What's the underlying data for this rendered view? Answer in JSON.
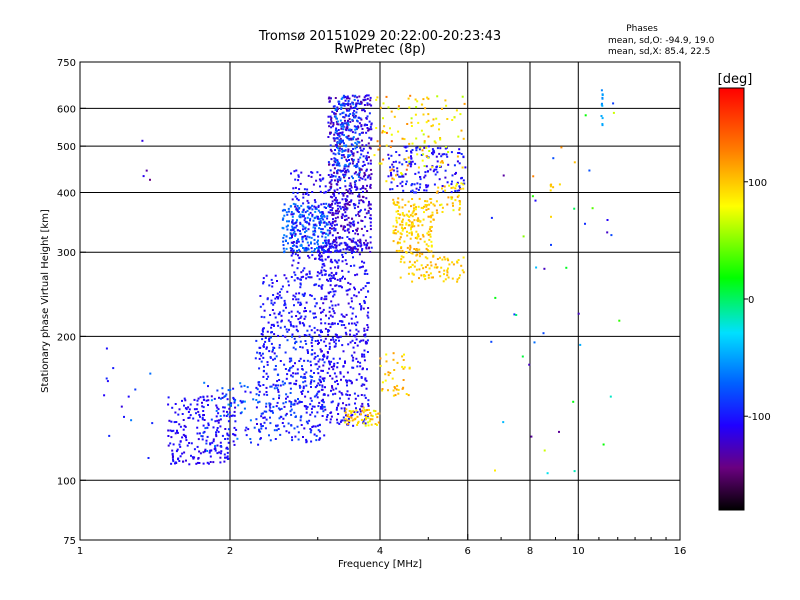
{
  "chart_data": {
    "type": "scatter",
    "title": "Tromsø 20151029 20:22:00-20:23:43",
    "subtitle": "RwPretec (8p)",
    "xlabel": "Frequency [MHz]",
    "ylabel": "Stationary phase Virtual Height [km]",
    "x_scale": "log",
    "y_scale": "log",
    "xlim": [
      1,
      16
    ],
    "ylim": [
      75,
      750
    ],
    "x_ticks": [
      1,
      2,
      4,
      6,
      8,
      10,
      16
    ],
    "y_ticks": [
      75,
      100,
      200,
      300,
      400,
      500,
      600,
      750
    ],
    "x_grid": [
      2,
      4,
      6,
      8,
      10
    ],
    "y_grid": [
      100,
      200,
      300,
      400,
      500,
      600
    ],
    "grid": true,
    "phase_stats": {
      "heading": "Phases",
      "o_line": "mean, sd,O: -94.9, 19.0",
      "x_line": "mean, sd,X:  85.4, 22.5"
    },
    "colorbar": {
      "label": "[deg]",
      "range": [
        -180,
        180
      ],
      "ticks": [
        100,
        0,
        -100
      ],
      "placement": "right"
    },
    "clusters": [
      {
        "f": [
          1.5,
          2.05
        ],
        "h": [
          108,
          150
        ],
        "phase": [
          -118,
          -98
        ],
        "n": 220
      },
      {
        "f": [
          1.75,
          2.3
        ],
        "h": [
          115,
          160
        ],
        "phase": [
          -112,
          -55
        ],
        "n": 80
      },
      {
        "f": [
          2.25,
          3.1
        ],
        "h": [
          120,
          200
        ],
        "phase": [
          -115,
          -75
        ],
        "n": 360
      },
      {
        "f": [
          2.3,
          3.0
        ],
        "h": [
          200,
          270
        ],
        "phase": [
          -115,
          -90
        ],
        "n": 160
      },
      {
        "f": [
          2.55,
          3.15
        ],
        "h": [
          300,
          380
        ],
        "phase": [
          -85,
          -55
        ],
        "n": 200
      },
      {
        "f": [
          2.65,
          3.3
        ],
        "h": [
          260,
          450
        ],
        "phase": [
          -120,
          -95
        ],
        "n": 220
      },
      {
        "f": [
          3.0,
          3.8
        ],
        "h": [
          130,
          320
        ],
        "phase": [
          -120,
          -95
        ],
        "n": 480
      },
      {
        "f": [
          3.15,
          3.85
        ],
        "h": [
          300,
          640
        ],
        "phase": [
          -140,
          -90
        ],
        "n": 620
      },
      {
        "f": [
          3.25,
          3.65
        ],
        "h": [
          420,
          640
        ],
        "phase": [
          -90,
          -60
        ],
        "n": 120
      },
      {
        "f": [
          3.4,
          4.0
        ],
        "h": [
          130,
          142
        ],
        "phase": [
          70,
          120
        ],
        "n": 60
      },
      {
        "f": [
          4.0,
          4.6
        ],
        "h": [
          150,
          185
        ],
        "phase": [
          80,
          120
        ],
        "n": 40
      },
      {
        "f": [
          4.25,
          5.15
        ],
        "h": [
          300,
          390
        ],
        "phase": [
          80,
          115
        ],
        "n": 180
      },
      {
        "f": [
          4.4,
          5.9
        ],
        "h": [
          260,
          300
        ],
        "phase": [
          85,
          115
        ],
        "n": 90
      },
      {
        "f": [
          4.15,
          5.95
        ],
        "h": [
          400,
          500
        ],
        "phase": [
          -120,
          -90
        ],
        "n": 160
      },
      {
        "f": [
          4.6,
          5.95
        ],
        "h": [
          450,
          640
        ],
        "phase": [
          60,
          120
        ],
        "n": 70
      },
      {
        "f": [
          3.9,
          4.6
        ],
        "h": [
          420,
          640
        ],
        "phase": [
          60,
          140
        ],
        "n": 50
      },
      {
        "f": [
          5.2,
          5.9
        ],
        "h": [
          360,
          420
        ],
        "phase": [
          70,
          120
        ],
        "n": 40
      },
      {
        "f": [
          1.1,
          1.4
        ],
        "h": [
          105,
          200
        ],
        "phase": [
          -120,
          -60
        ],
        "n": 14
      },
      {
        "f": [
          1.25,
          1.45
        ],
        "h": [
          420,
          560
        ],
        "phase": [
          -150,
          -110
        ],
        "n": 4
      },
      {
        "f": [
          6.5,
          12.5
        ],
        "h": [
          100,
          660
        ],
        "phase": [
          -140,
          140
        ],
        "n": 45
      },
      {
        "f": [
          11.1,
          11.2
        ],
        "h": [
          540,
          660
        ],
        "phase": [
          -60,
          -40
        ],
        "n": 12
      },
      {
        "f": [
          8.8,
          9.2
        ],
        "h": [
          400,
          420
        ],
        "phase": [
          90,
          110
        ],
        "n": 6
      }
    ]
  }
}
